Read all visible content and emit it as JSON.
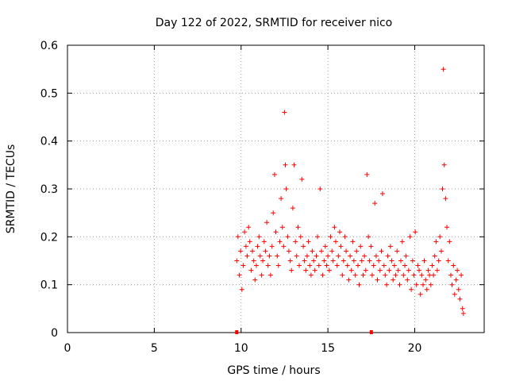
{
  "chart_data": {
    "type": "scatter",
    "title": "Day 122 of 2022, SRMTID for receiver nico",
    "xlabel": "GPS time / hours",
    "ylabel": "SRMTID / TECUs",
    "xlim": [
      0,
      24
    ],
    "ylim": [
      0,
      0.6
    ],
    "xticks": [
      0,
      5,
      10,
      15,
      20
    ],
    "yticks": [
      0,
      0.1,
      0.2,
      0.3,
      0.4,
      0.5,
      0.6
    ],
    "xtick_labels": [
      "0",
      "5",
      "10",
      "15",
      "20"
    ],
    "ytick_labels": [
      "0",
      "0.1",
      "0.2",
      "0.3",
      "0.4",
      "0.5",
      "0.6"
    ],
    "grid": true,
    "marker": "+",
    "color": "#ff0000",
    "series": [
      {
        "name": "SRMTID",
        "x": [
          9.75,
          9.82,
          9.9,
          9.97,
          10.05,
          10.12,
          10.2,
          10.28,
          10.35,
          10.43,
          10.5,
          10.58,
          10.65,
          10.73,
          10.8,
          10.88,
          10.95,
          11.03,
          11.1,
          11.18,
          11.25,
          11.33,
          11.4,
          11.48,
          11.55,
          11.63,
          11.7,
          11.78,
          11.85,
          11.93,
          12.0,
          12.08,
          12.15,
          12.23,
          12.3,
          12.38,
          12.45,
          12.5,
          12.55,
          12.6,
          12.68,
          12.75,
          12.83,
          12.9,
          12.98,
          13.05,
          13.13,
          13.2,
          13.28,
          13.35,
          13.43,
          13.5,
          13.58,
          13.65,
          13.73,
          13.8,
          13.88,
          13.95,
          14.03,
          14.1,
          14.18,
          14.25,
          14.33,
          14.4,
          14.48,
          14.55,
          14.63,
          14.7,
          14.78,
          14.85,
          14.93,
          15.0,
          15.08,
          15.15,
          15.23,
          15.3,
          15.38,
          15.45,
          15.53,
          15.6,
          15.68,
          15.75,
          15.83,
          15.9,
          15.98,
          16.05,
          16.13,
          16.2,
          16.28,
          16.35,
          16.43,
          16.5,
          16.58,
          16.65,
          16.73,
          16.8,
          16.88,
          16.95,
          17.03,
          17.1,
          17.18,
          17.25,
          17.33,
          17.4,
          17.48,
          17.55,
          17.63,
          17.7,
          17.78,
          17.85,
          17.93,
          18.0,
          18.08,
          18.15,
          18.23,
          18.3,
          18.38,
          18.45,
          18.53,
          18.6,
          18.68,
          18.75,
          18.83,
          18.9,
          18.98,
          19.05,
          19.13,
          19.2,
          19.28,
          19.35,
          19.43,
          19.5,
          19.58,
          19.65,
          19.73,
          19.8,
          19.88,
          19.95,
          20.03,
          20.1,
          20.18,
          20.25,
          20.33,
          20.4,
          20.48,
          20.55,
          20.63,
          20.7,
          20.78,
          20.85,
          20.93,
          21.0,
          21.08,
          21.15,
          21.23,
          21.3,
          21.38,
          21.45,
          21.53,
          21.6,
          21.65,
          21.7,
          21.78,
          21.85,
          21.93,
          22.0,
          22.08,
          22.15,
          22.23,
          22.3,
          22.38,
          22.45,
          22.53,
          22.6,
          22.68,
          22.75,
          22.8
        ],
        "y": [
          0.15,
          0.2,
          0.12,
          0.17,
          0.09,
          0.14,
          0.21,
          0.18,
          0.16,
          0.22,
          0.19,
          0.13,
          0.17,
          0.15,
          0.11,
          0.14,
          0.18,
          0.2,
          0.16,
          0.12,
          0.15,
          0.19,
          0.17,
          0.23,
          0.14,
          0.16,
          0.12,
          0.18,
          0.25,
          0.33,
          0.21,
          0.16,
          0.14,
          0.19,
          0.28,
          0.22,
          0.18,
          0.46,
          0.35,
          0.3,
          0.2,
          0.17,
          0.15,
          0.13,
          0.26,
          0.35,
          0.19,
          0.16,
          0.22,
          0.14,
          0.2,
          0.32,
          0.18,
          0.15,
          0.13,
          0.16,
          0.19,
          0.14,
          0.12,
          0.17,
          0.15,
          0.13,
          0.16,
          0.2,
          0.14,
          0.3,
          0.17,
          0.12,
          0.15,
          0.18,
          0.14,
          0.16,
          0.13,
          0.2,
          0.17,
          0.15,
          0.22,
          0.19,
          0.14,
          0.16,
          0.21,
          0.18,
          0.12,
          0.15,
          0.2,
          0.17,
          0.14,
          0.11,
          0.16,
          0.13,
          0.19,
          0.15,
          0.12,
          0.17,
          0.14,
          0.1,
          0.18,
          0.15,
          0.12,
          0.16,
          0.13,
          0.33,
          0.2,
          0.15,
          0.18,
          0.12,
          0.14,
          0.27,
          0.16,
          0.11,
          0.15,
          0.13,
          0.17,
          0.29,
          0.14,
          0.12,
          0.1,
          0.16,
          0.13,
          0.18,
          0.15,
          0.11,
          0.14,
          0.12,
          0.17,
          0.13,
          0.1,
          0.15,
          0.19,
          0.12,
          0.14,
          0.16,
          0.11,
          0.13,
          0.2,
          0.09,
          0.15,
          0.12,
          0.21,
          0.1,
          0.14,
          0.13,
          0.08,
          0.12,
          0.1,
          0.15,
          0.11,
          0.09,
          0.13,
          0.12,
          0.1,
          0.14,
          0.12,
          0.16,
          0.19,
          0.13,
          0.15,
          0.2,
          0.17,
          0.3,
          0.55,
          0.35,
          0.28,
          0.22,
          0.15,
          0.19,
          0.12,
          0.1,
          0.14,
          0.08,
          0.11,
          0.13,
          0.09,
          0.07,
          0.12,
          0.05,
          0.04
        ]
      }
    ],
    "markers_on_axis": [
      9.75,
      17.5
    ]
  }
}
